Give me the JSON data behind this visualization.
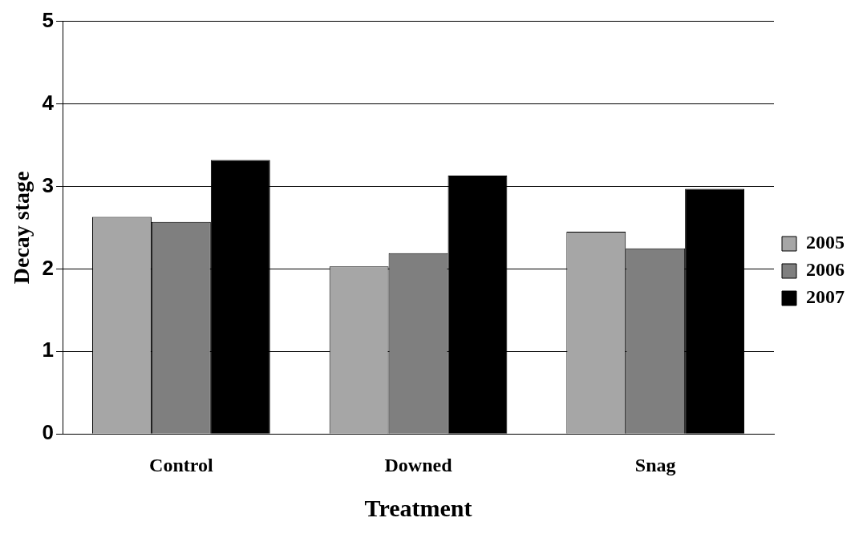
{
  "chart_data": {
    "type": "bar",
    "xlabel": "Treatment",
    "ylabel": "Decay stage",
    "categories": [
      "Control",
      "Downed",
      "Snag"
    ],
    "series": [
      {
        "name": "2005",
        "color": "#a6a6a6",
        "values": [
          2.63,
          2.03,
          2.45
        ]
      },
      {
        "name": "2006",
        "color": "#7f7f7f",
        "values": [
          2.57,
          2.19,
          2.25
        ]
      },
      {
        "name": "2007",
        "color": "#000000",
        "values": [
          3.32,
          3.13,
          2.97
        ]
      }
    ],
    "ylim": [
      0,
      5
    ],
    "yticks": [
      0,
      1,
      2,
      3,
      4,
      5
    ],
    "grid": "y",
    "legend": "right"
  }
}
